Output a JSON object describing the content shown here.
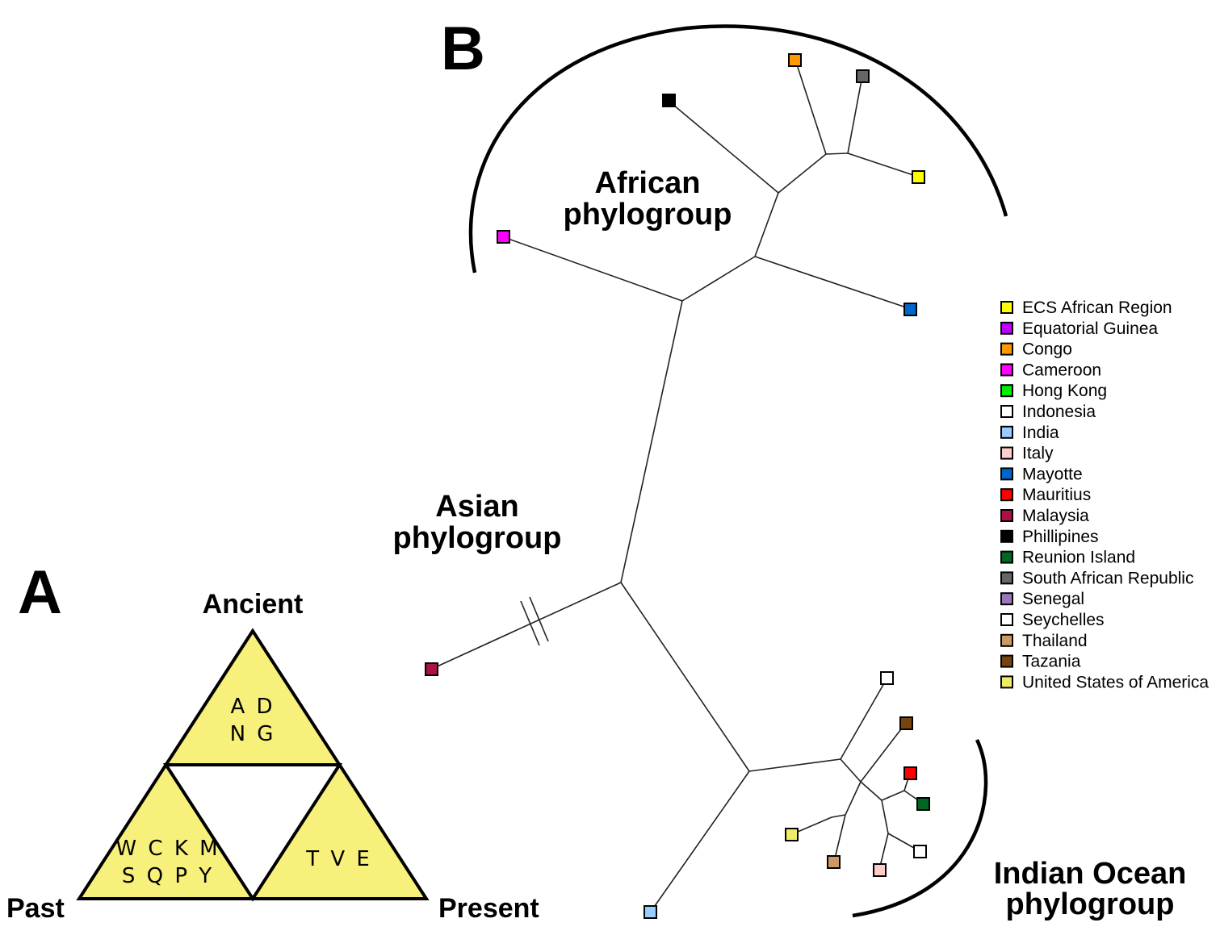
{
  "panel_a": {
    "letter": "A",
    "top_label": "Ancient",
    "left_label": "Past",
    "right_label": "Present",
    "top_triangle": {
      "line1": "A D",
      "line2": "N G"
    },
    "left_triangle": {
      "line1": "W C K M",
      "line2": "S Q P Y"
    },
    "right_triangle": {
      "line1": "T V E"
    },
    "fill_color": "#f7f07a"
  },
  "panel_b": {
    "letter": "B",
    "groups": {
      "african": {
        "line1": "African",
        "line2": "phylogroup"
      },
      "asian": {
        "line1": "Asian",
        "line2": "phylogroup"
      },
      "indian_ocean": {
        "line1": "Indian Ocean",
        "line2": "phylogroup"
      }
    },
    "legend": [
      {
        "label": "ECS African Region",
        "color": "#ffff00"
      },
      {
        "label": "Equatorial Guinea",
        "color": "#c000ff"
      },
      {
        "label": "Congo",
        "color": "#ff9900"
      },
      {
        "label": "Cameroon",
        "color": "#ff00ff"
      },
      {
        "label": "Hong Kong",
        "color": "#00ee00"
      },
      {
        "label": "Indonesia",
        "color": "#ffffff"
      },
      {
        "label": "India",
        "color": "#99ccff"
      },
      {
        "label": "Italy",
        "color": "#ffcccc"
      },
      {
        "label": "Mayotte",
        "color": "#0066cc"
      },
      {
        "label": "Mauritius",
        "color": "#ff0000"
      },
      {
        "label": "Malaysia",
        "color": "#aa1144"
      },
      {
        "label": "Phillipines",
        "color": "#000000"
      },
      {
        "label": "Reunion Island",
        "color": "#006622"
      },
      {
        "label": "South African Republic",
        "color": "#666666"
      },
      {
        "label": "Senegal",
        "color": "#9977bb"
      },
      {
        "label": "Seychelles",
        "color": "#ffffff"
      },
      {
        "label": "Thailand",
        "color": "#cc9966"
      },
      {
        "label": "Tazania",
        "color": "#774411"
      },
      {
        "label": "United States of America",
        "color": "#eeee66"
      }
    ]
  }
}
